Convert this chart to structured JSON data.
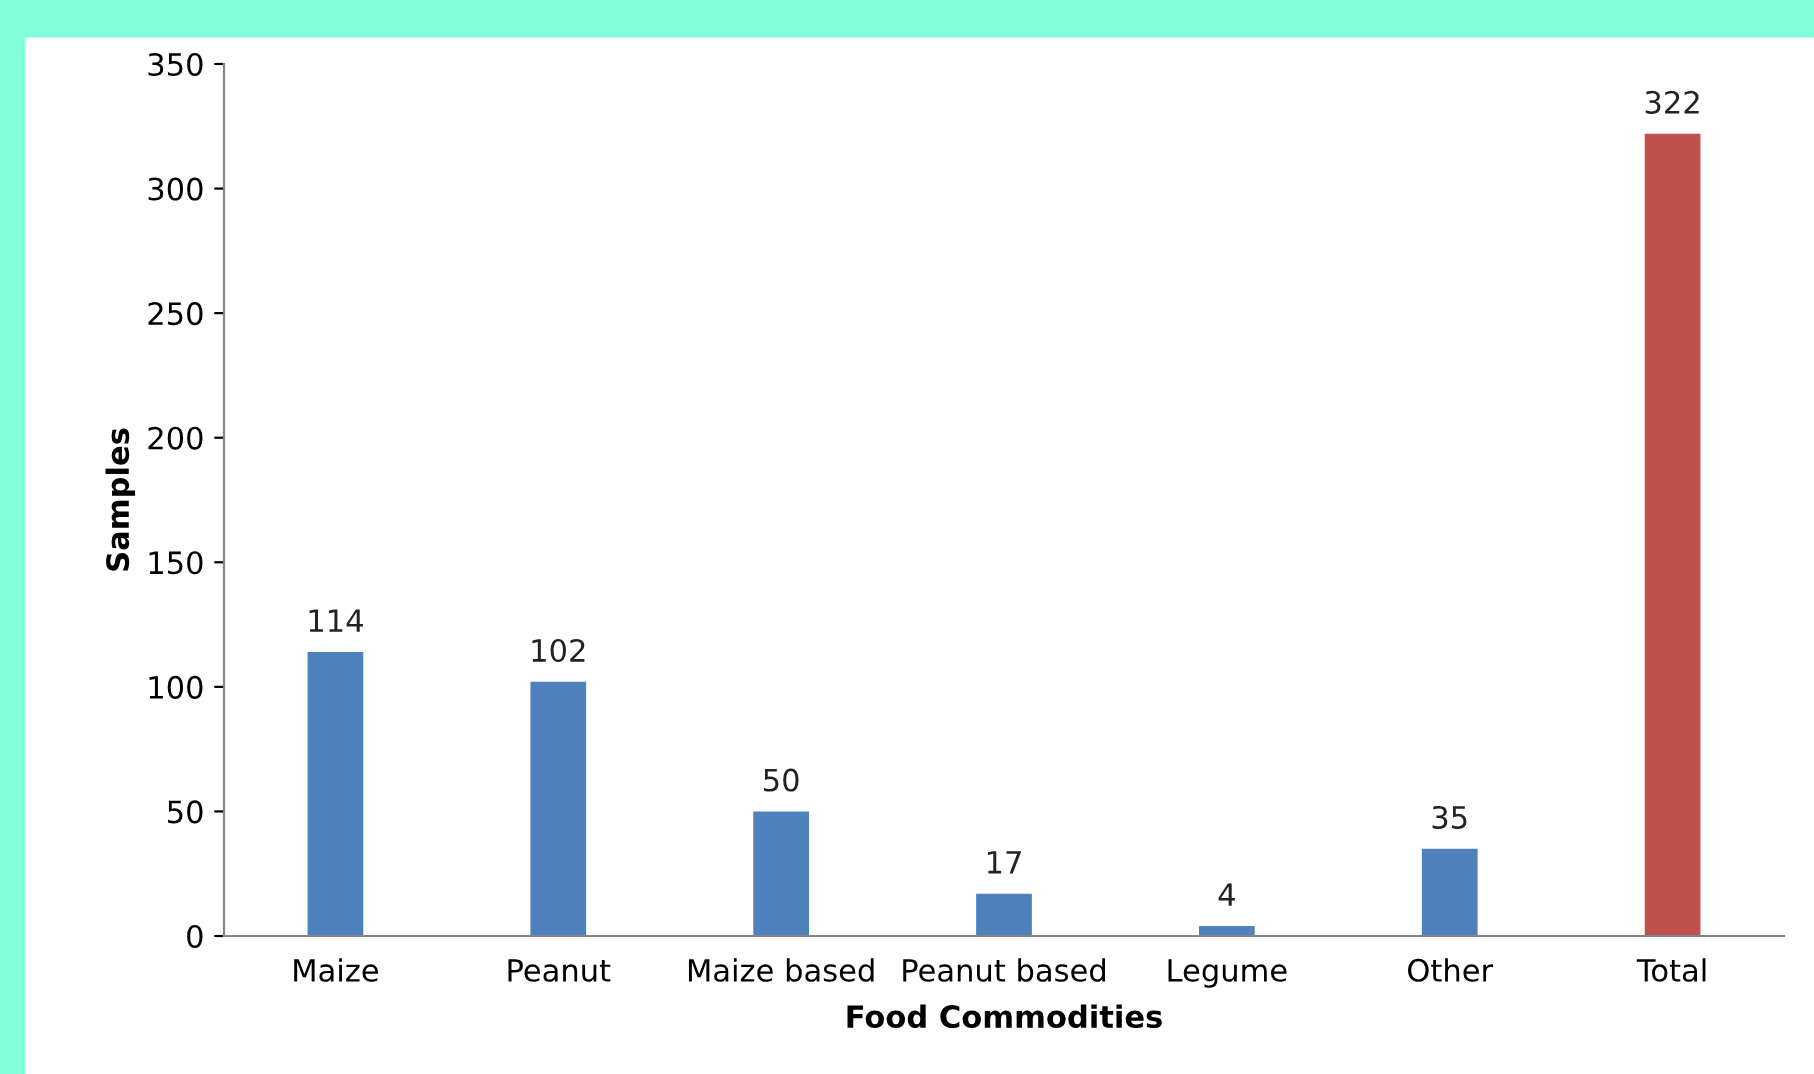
{
  "chart_data": {
    "type": "bar",
    "xlabel": "Food Commodities",
    "ylabel": "Samples",
    "categories": [
      "Maize",
      "Peanut",
      "Maize based",
      "Peanut based",
      "Legume",
      "Other",
      "Total"
    ],
    "values": [
      114,
      102,
      50,
      17,
      4,
      35,
      322
    ],
    "colors": [
      "#4f81bd",
      "#4f81bd",
      "#4f81bd",
      "#4f81bd",
      "#4f81bd",
      "#4f81bd",
      "#c0504d"
    ],
    "ylim": [
      0,
      350
    ],
    "yticks": [
      0,
      50,
      100,
      150,
      200,
      250,
      300,
      350
    ],
    "grid": false,
    "data_labels": true
  }
}
